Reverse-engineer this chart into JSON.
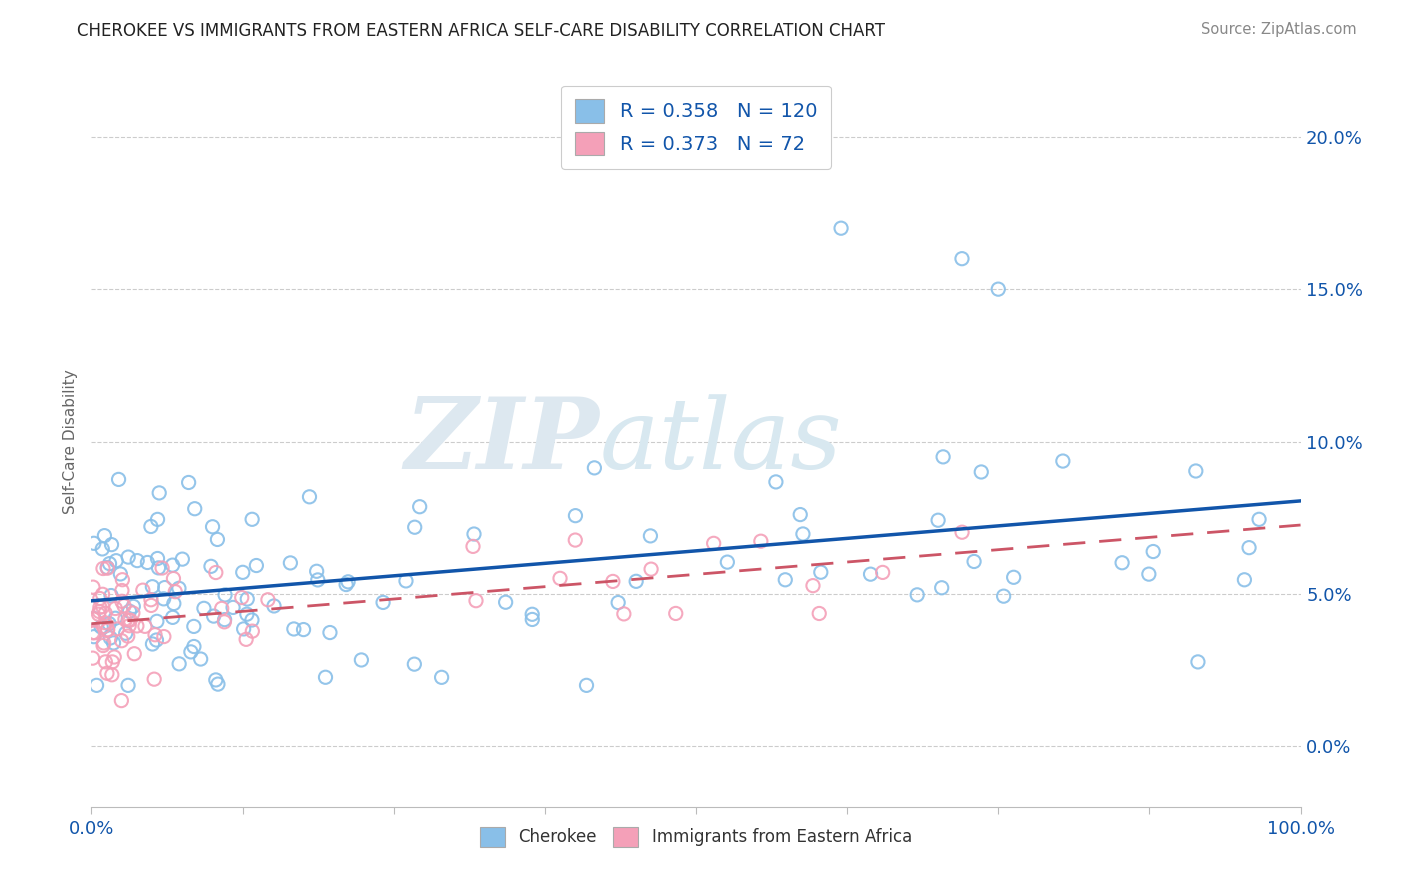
{
  "title": "CHEROKEE VS IMMIGRANTS FROM EASTERN AFRICA SELF-CARE DISABILITY CORRELATION CHART",
  "source": "Source: ZipAtlas.com",
  "ylabel": "Self-Care Disability",
  "cherokee_R": 0.358,
  "cherokee_N": 120,
  "eastern_africa_R": 0.373,
  "eastern_africa_N": 72,
  "cherokee_color": "#89bfe8",
  "eastern_africa_color": "#f4a0b8",
  "cherokee_line_color": "#1155aa",
  "eastern_africa_line_color": "#cc5566",
  "background_color": "#ffffff",
  "grid_color": "#cccccc",
  "title_color": "#222222",
  "source_color": "#888888",
  "blue_text_color": "#1155aa",
  "watermark_color": "#e8eef5",
  "xlim": [
    0,
    100
  ],
  "ylim": [
    -2,
    22
  ],
  "y_ticks": [
    0,
    5,
    10,
    15,
    20
  ],
  "x_ticks": [
    0,
    12.5,
    25,
    37.5,
    50,
    62.5,
    75,
    87.5,
    100
  ]
}
